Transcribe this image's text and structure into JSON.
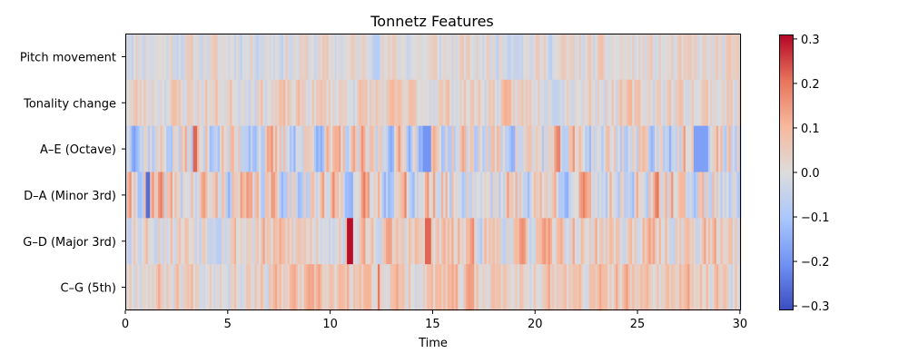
{
  "chart_data": {
    "type": "heatmap",
    "title": "Tonnetz Features",
    "xlabel": "Time",
    "ylabel": "",
    "rows": [
      "Pitch movement",
      "Tonality change",
      "A–E (Octave)",
      "D–A (Minor 3rd)",
      "G–D (Major 3rd)",
      "C–G (5th)"
    ],
    "x_range": [
      0,
      30.05
    ],
    "x_ticks": [
      0,
      5,
      10,
      15,
      20,
      25,
      30
    ],
    "x_tick_labels": [
      "0",
      "5",
      "10",
      "15",
      "20",
      "25",
      "30"
    ],
    "value_range": [
      -0.31,
      0.31
    ],
    "colorbar_ticks": [
      0.3,
      0.2,
      0.1,
      0.0,
      -0.1,
      -0.2,
      -0.3
    ],
    "colorbar_tick_labels": [
      "0.3",
      "0.2",
      "0.1",
      "0.0",
      "−0.1",
      "−0.2",
      "−0.3"
    ],
    "colormap": "coolwarm",
    "colormap_stops": [
      "#3b4cc0",
      "#6f92f3",
      "#aac7fd",
      "#dddcdc",
      "#f7b89c",
      "#e7745b",
      "#b40426"
    ],
    "frames_per_row": 300,
    "row_profiles": [
      {
        "row": "Pitch movement",
        "amplitude": 0.06,
        "bias": 0.005,
        "seed": 11,
        "notes": "low-amplitude noise, mixed light red and light blue"
      },
      {
        "row": "Tonality change",
        "amplitude": 0.07,
        "bias": 0.03,
        "seed": 23,
        "notes": "mostly slightly positive (light salmon)"
      },
      {
        "row": "A–E (Octave)",
        "amplitude": 0.14,
        "bias": 0.0,
        "seed": 37,
        "notes": "strong alternating bands; blue clusters near 5, 11-15, 28"
      },
      {
        "row": "D–A (Minor 3rd)",
        "amplitude": 0.14,
        "bias": 0.02,
        "seed": 41,
        "notes": "mixed red/blue, dark blue near 1.1"
      },
      {
        "row": "G–D (Major 3rd)",
        "amplitude": 0.1,
        "bias": 0.04,
        "seed": 53,
        "notes": "mostly positive, dark red peak ~0.3 at t≈11"
      },
      {
        "row": "C–G (5th)",
        "amplitude": 0.08,
        "bias": 0.05,
        "seed": 67,
        "notes": "mostly light red/salmon"
      }
    ],
    "highlights": [
      {
        "row": "G–D (Major 3rd)",
        "x_start": 10.85,
        "x_end": 11.15,
        "value": 0.3
      },
      {
        "row": "G–D (Major 3rd)",
        "x_start": 14.65,
        "x_end": 14.95,
        "value": 0.22
      },
      {
        "row": "D–A (Minor 3rd)",
        "x_start": 1.05,
        "x_end": 1.2,
        "value": -0.26
      },
      {
        "row": "A–E (Octave)",
        "x_start": 3.3,
        "x_end": 3.5,
        "value": 0.22
      },
      {
        "row": "A–E (Octave)",
        "x_start": 27.7,
        "x_end": 28.4,
        "value": -0.18
      },
      {
        "row": "A–E (Octave)",
        "x_start": 14.5,
        "x_end": 14.9,
        "value": -0.2
      },
      {
        "row": "C–G (5th)",
        "x_start": 12.3,
        "x_end": 12.45,
        "value": 0.2
      }
    ]
  }
}
